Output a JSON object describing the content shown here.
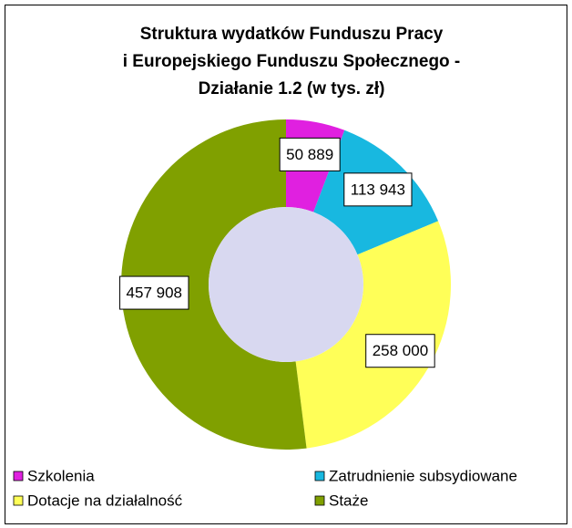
{
  "chart_data": {
    "type": "donut",
    "title": [
      "Struktura wydatków Funduszu Pracy",
      "i Europejskiego Funduszu Społecznego -",
      "Działanie 1.2 (w tys. zł)"
    ],
    "categories": [
      "Szkolenia",
      "Zatrudnienie subsydiowane",
      "Dotacje na działalność",
      "Staże"
    ],
    "values": [
      50889,
      113943,
      258000,
      457908
    ],
    "value_labels": [
      "50 889",
      "113 943",
      "258 000",
      "457 908"
    ],
    "colors": [
      "#e020e0",
      "#18b8e0",
      "#ffff58",
      "#80a000"
    ],
    "legend": "bottom"
  }
}
